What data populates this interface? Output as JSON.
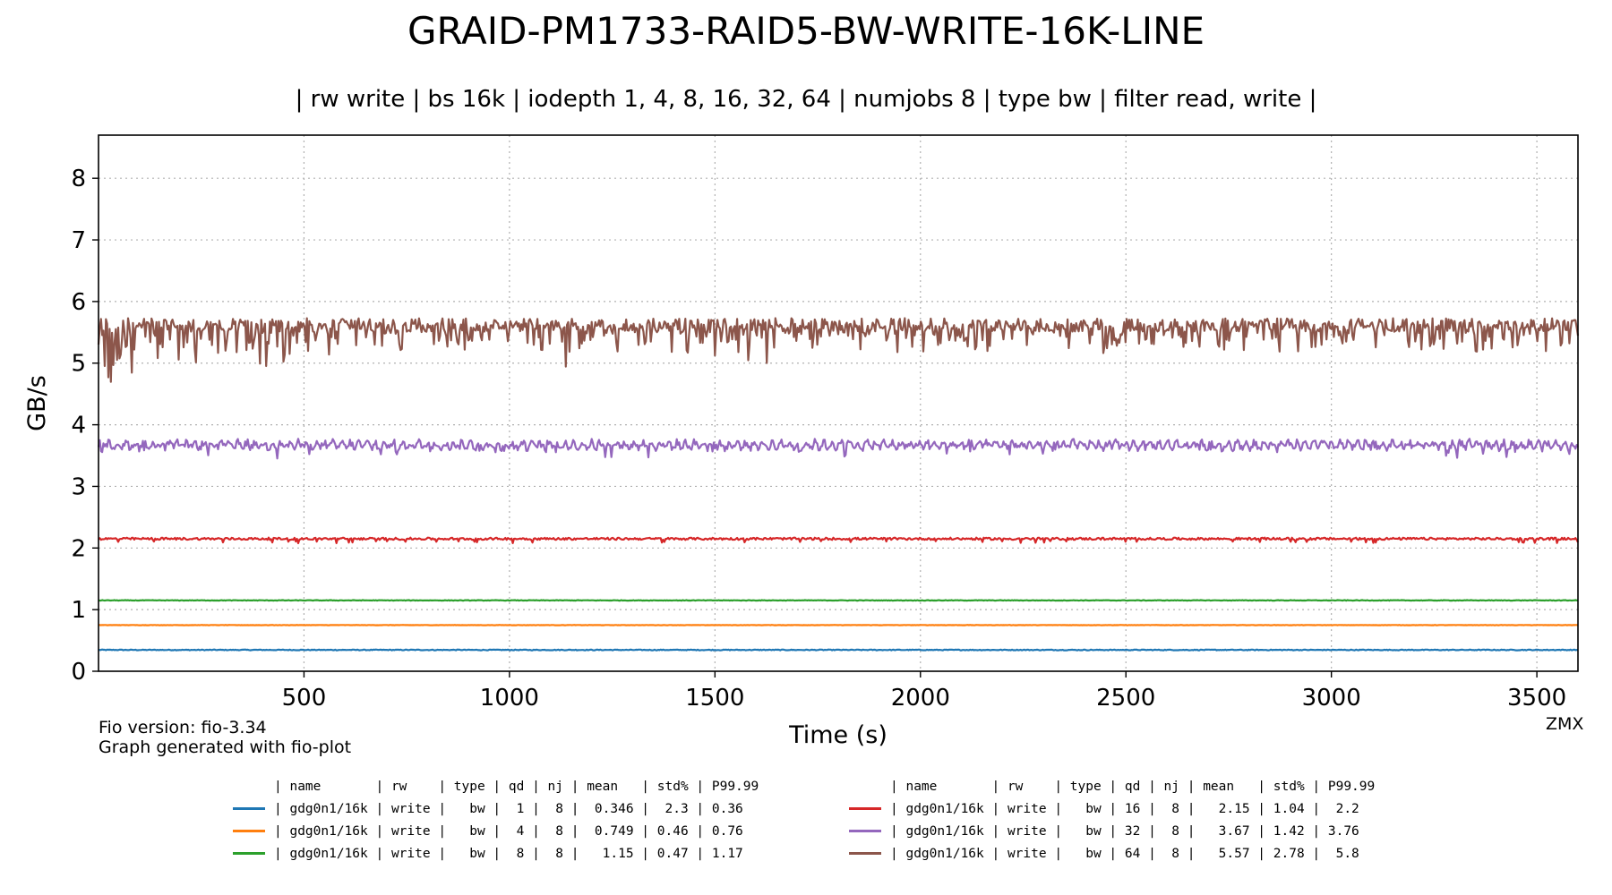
{
  "chart_data": {
    "type": "line",
    "title": "GRAID-PM1733-RAID5-BW-WRITE-16K-LINE",
    "subtitle": "| rw write | bs 16k | iodepth 1, 4, 8, 16, 32, 64 | numjobs 8 | type bw | filter read, write |",
    "xlabel": "Time (s)",
    "ylabel": "GB/s",
    "xlim": [
      0,
      3600
    ],
    "ylim": [
      0,
      8.7
    ],
    "xticks": [
      500,
      1000,
      1500,
      2000,
      2500,
      3000,
      3500
    ],
    "yticks": [
      0,
      1,
      2,
      3,
      4,
      5,
      6,
      7,
      8
    ],
    "grid": true,
    "series": [
      {
        "name": "| gdg0n1/16k | write |   bw |  1 |  8 |  0.346 |  2.3 | 0.36",
        "color": "#1f77b4",
        "mean": 0.346,
        "std_pct": 2.3,
        "p9999": 0.36
      },
      {
        "name": "| gdg0n1/16k | write |   bw |  4 |  8 |  0.749 | 0.46 | 0.76",
        "color": "#ff7f0e",
        "mean": 0.749,
        "std_pct": 0.46,
        "p9999": 0.76
      },
      {
        "name": "| gdg0n1/16k | write |   bw |  8 |  8 |   1.15 | 0.47 | 1.17",
        "color": "#2ca02c",
        "mean": 1.15,
        "std_pct": 0.47,
        "p9999": 1.17
      },
      {
        "name": "| gdg0n1/16k | write |   bw | 16 |  8 |   2.15 | 1.04 |  2.2",
        "color": "#d62728",
        "mean": 2.15,
        "std_pct": 1.04,
        "p9999": 2.2
      },
      {
        "name": "| gdg0n1/16k | write |   bw | 32 |  8 |   3.67 | 1.42 | 3.76",
        "color": "#9467bd",
        "mean": 3.67,
        "std_pct": 1.42,
        "p9999": 3.76
      },
      {
        "name": "| gdg0n1/16k | write |   bw | 64 |  8 |   5.57 | 2.78 |  5.8",
        "color": "#8c564b",
        "mean": 5.57,
        "std_pct": 2.78,
        "p9999": 5.8
      }
    ],
    "legend_header": "| name       | rw    | type | qd | nj | mean   | std% | P99.99",
    "legend_placement": "bottom-center"
  },
  "footer": {
    "fio_version": "Fio version: fio-3.34",
    "generator": "Graph generated with fio-plot",
    "watermark": "ZMX"
  }
}
